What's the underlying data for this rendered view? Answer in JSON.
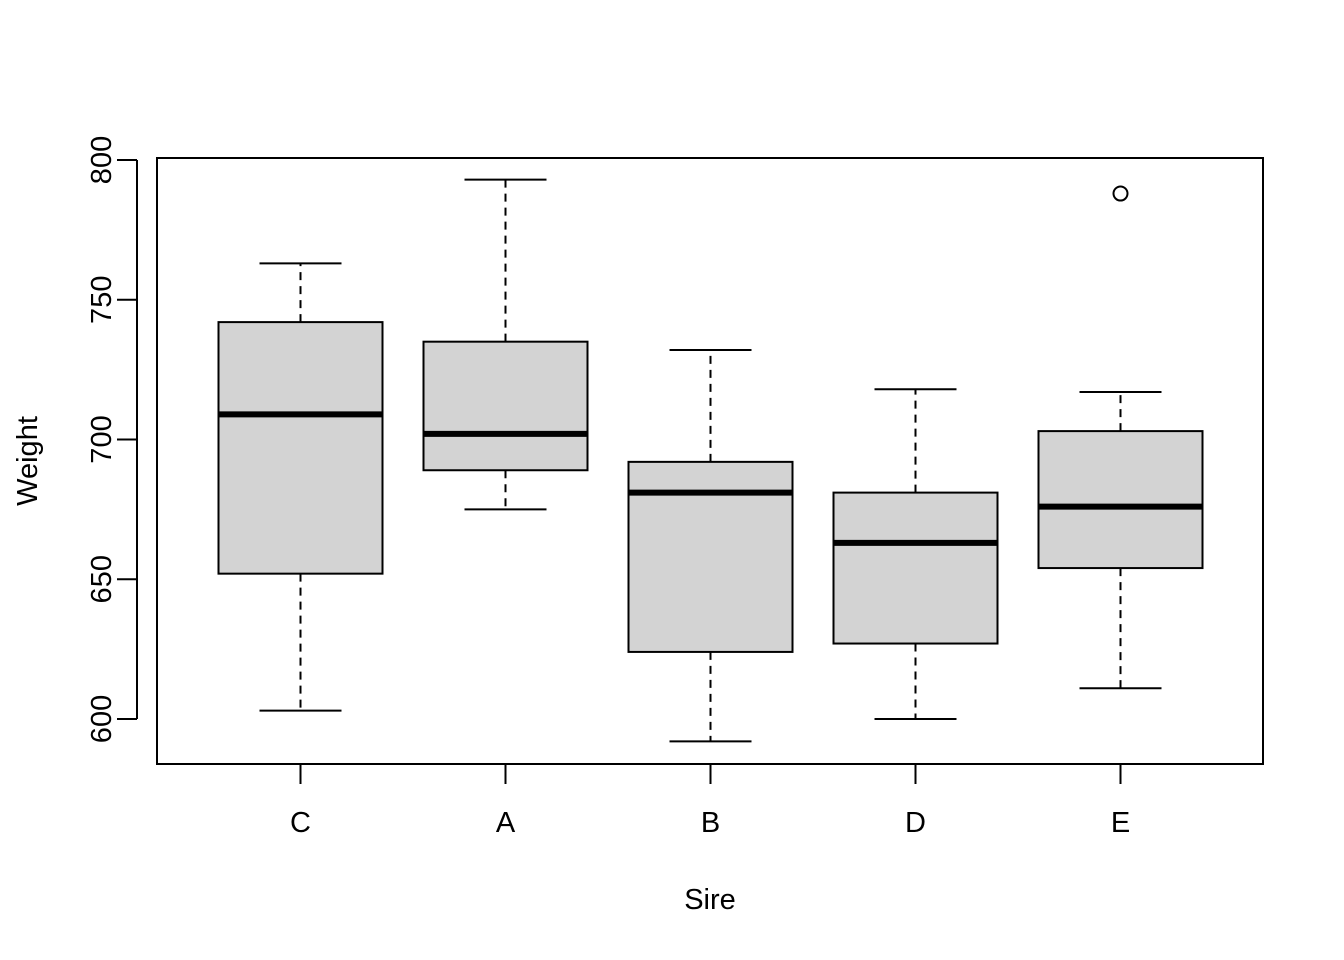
{
  "chart_data": {
    "type": "boxplot",
    "xlabel": "Sire",
    "ylabel": "Weight",
    "categories": [
      "C",
      "A",
      "B",
      "D",
      "E"
    ],
    "ylim": [
      584,
      801
    ],
    "yticks": [
      600,
      650,
      700,
      750,
      800
    ],
    "yticklabels": [
      "600",
      "650",
      "700",
      "750",
      "800"
    ],
    "boxes": [
      {
        "label": "C",
        "whisker_low": 603,
        "q1": 652,
        "median": 709,
        "q3": 742,
        "whisker_high": 763,
        "outliers": []
      },
      {
        "label": "A",
        "whisker_low": 675,
        "q1": 689,
        "median": 702,
        "q3": 735,
        "whisker_high": 793,
        "outliers": []
      },
      {
        "label": "B",
        "whisker_low": 592,
        "q1": 624,
        "median": 681,
        "q3": 692,
        "whisker_high": 732,
        "outliers": []
      },
      {
        "label": "D",
        "whisker_low": 600,
        "q1": 627,
        "median": 663,
        "q3": 681,
        "whisker_high": 718,
        "outliers": []
      },
      {
        "label": "E",
        "whisker_low": 611,
        "q1": 654,
        "median": 676,
        "q3": 703,
        "whisker_high": 717,
        "outliers": [
          788
        ]
      }
    ],
    "box_fill": "#d3d3d3",
    "line_color": "#000000",
    "grid": false,
    "legend": "none"
  }
}
